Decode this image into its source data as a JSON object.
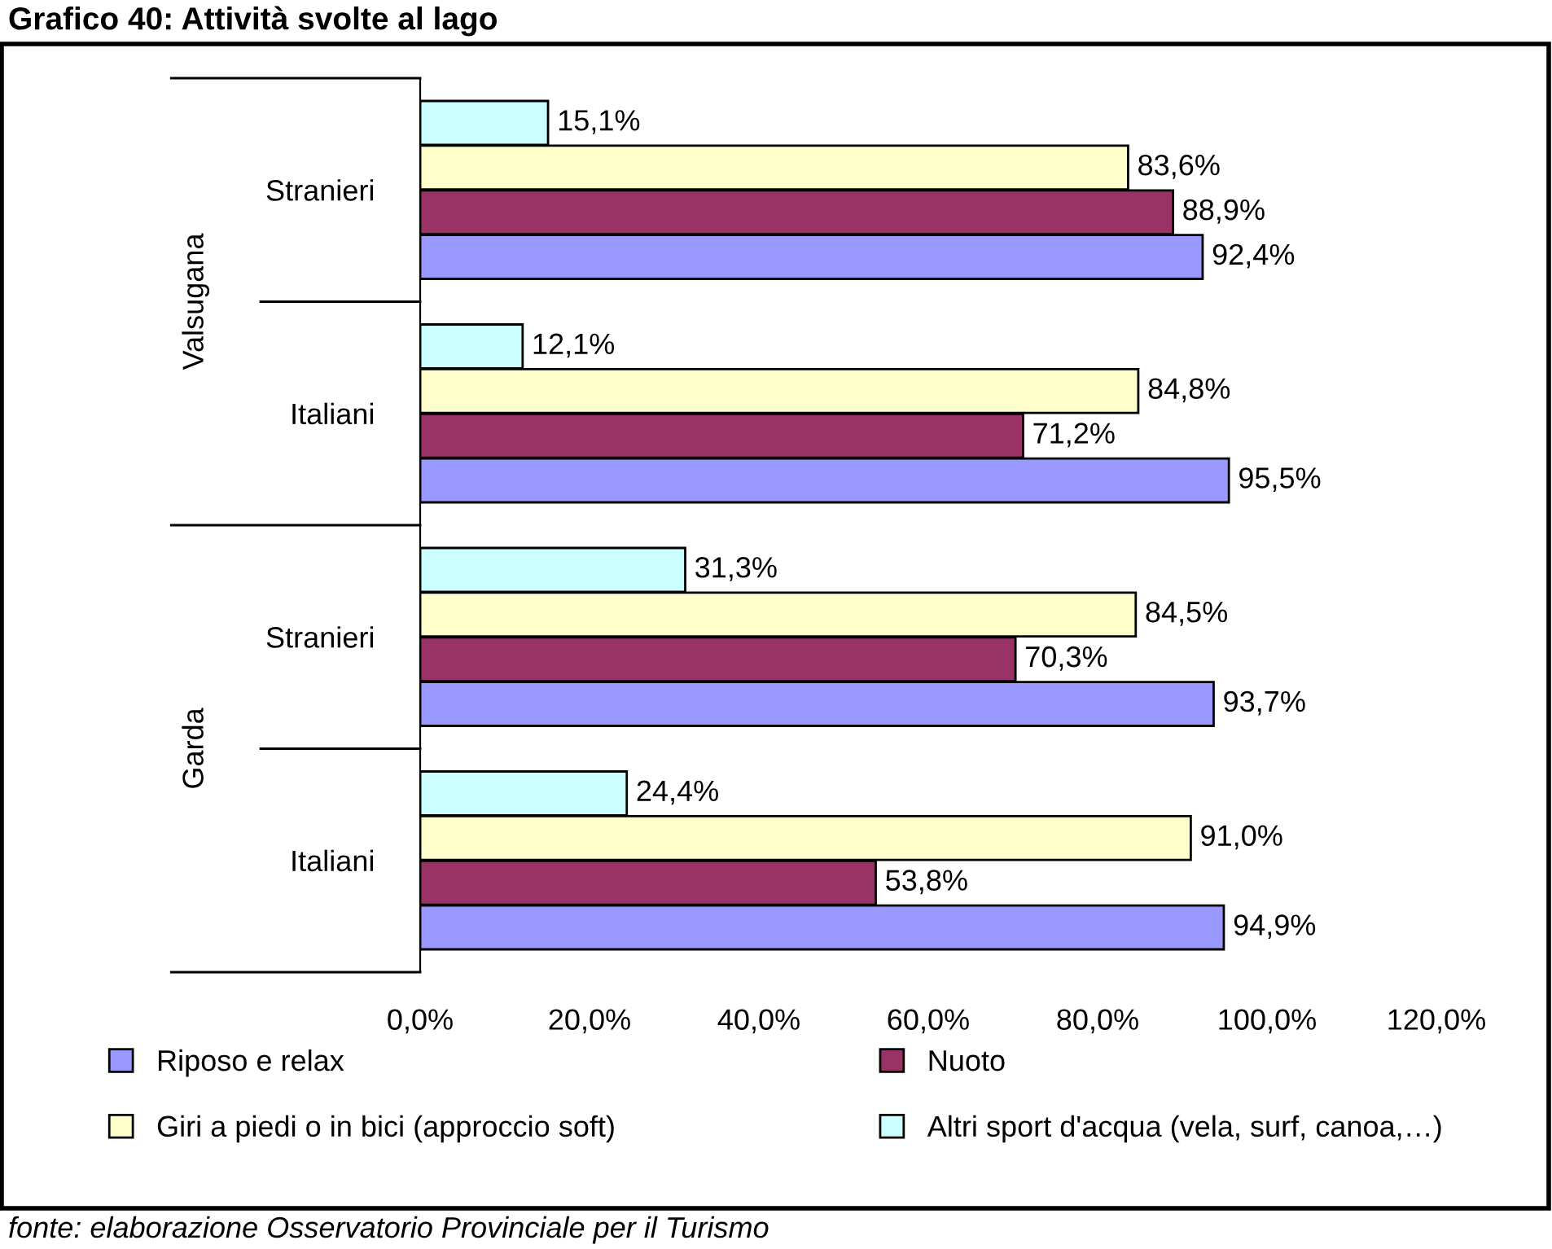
{
  "chart_data": {
    "type": "bar",
    "orientation": "horizontal",
    "title": "Grafico 40: Attività svolte al lago",
    "categories": [
      "Stranieri",
      "Italiani",
      "Stranieri",
      "Italiani"
    ],
    "series": [
      {
        "name": "Riposo e relax",
        "color": "#9999ff",
        "values": [
          92.4,
          95.5,
          93.7,
          94.9
        ],
        "value_labels": [
          "92,4%",
          "95,5%",
          "93,7%",
          "94,9%"
        ]
      },
      {
        "name": "Nuoto",
        "color": "#993366",
        "values": [
          88.9,
          71.2,
          70.3,
          53.8
        ],
        "value_labels": [
          "88,9%",
          "71,2%",
          "70,3%",
          "53,8%"
        ]
      },
      {
        "name": "Giri a piedi o in bici (approccio soft)",
        "color": "#ffffcc",
        "values": [
          83.6,
          84.8,
          84.5,
          91.0
        ],
        "value_labels": [
          "83,6%",
          "84,8%",
          "84,5%",
          "91,0%"
        ]
      },
      {
        "name": "Altri sport d'acqua (vela, surf, canoa,…)",
        "color": "#ccffff",
        "values": [
          15.1,
          12.1,
          31.3,
          24.4
        ],
        "value_labels": [
          "15,1%",
          "12,1%",
          "31,3%",
          "24,4%"
        ]
      }
    ],
    "xlim": [
      0,
      120
    ],
    "xticks": [
      {
        "value": 0,
        "label": "0,0%"
      },
      {
        "value": 20,
        "label": "20,0%"
      },
      {
        "value": 40,
        "label": "40,0%"
      },
      {
        "value": 60,
        "label": "60,0%"
      },
      {
        "value": 80,
        "label": "80,0%"
      },
      {
        "value": 100,
        "label": "100,0%"
      },
      {
        "value": 120,
        "label": "120,0%"
      }
    ],
    "grid": false,
    "legend": "bottom",
    "annotations": [
      "Valsugana",
      "Garda",
      "fonte: elaborazione Osservatorio Provinciale per il Turismo"
    ]
  }
}
